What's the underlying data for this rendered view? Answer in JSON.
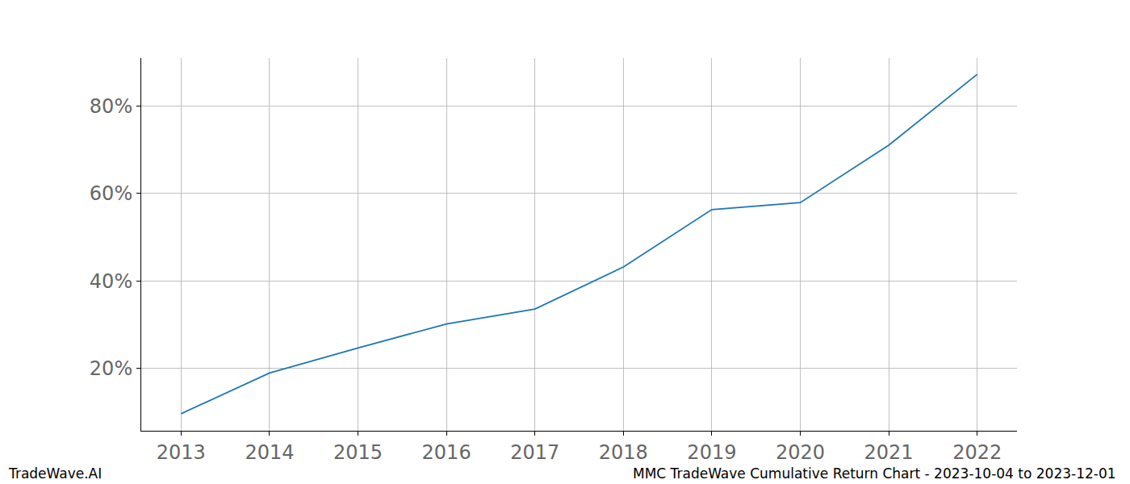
{
  "chart_data": {
    "type": "line",
    "x": [
      2013,
      2014,
      2015,
      2016,
      2017,
      2018,
      2019,
      2020,
      2021,
      2022
    ],
    "series": [
      {
        "color": "#1f77b4",
        "values": [
          9.7,
          19.0,
          24.7,
          30.2,
          33.6,
          43.2,
          56.3,
          57.9,
          71.0,
          87.2
        ]
      }
    ],
    "xlim": [
      2012.55,
      2022.45
    ],
    "xticks": [
      2013,
      2014,
      2015,
      2016,
      2017,
      2018,
      2019,
      2020,
      2021,
      2022
    ],
    "ylim": [
      5.8,
      90.9
    ],
    "yticks": [
      {
        "value": 20,
        "label": "20%"
      },
      {
        "value": 40,
        "label": "40%"
      },
      {
        "value": 60,
        "label": "60%"
      },
      {
        "value": 80,
        "label": "80%"
      }
    ],
    "grid": true,
    "annotations": [
      "TradeWave.AI",
      "MMC TradeWave Cumulative Return Chart - 2023-10-04 to 2023-12-01"
    ]
  }
}
